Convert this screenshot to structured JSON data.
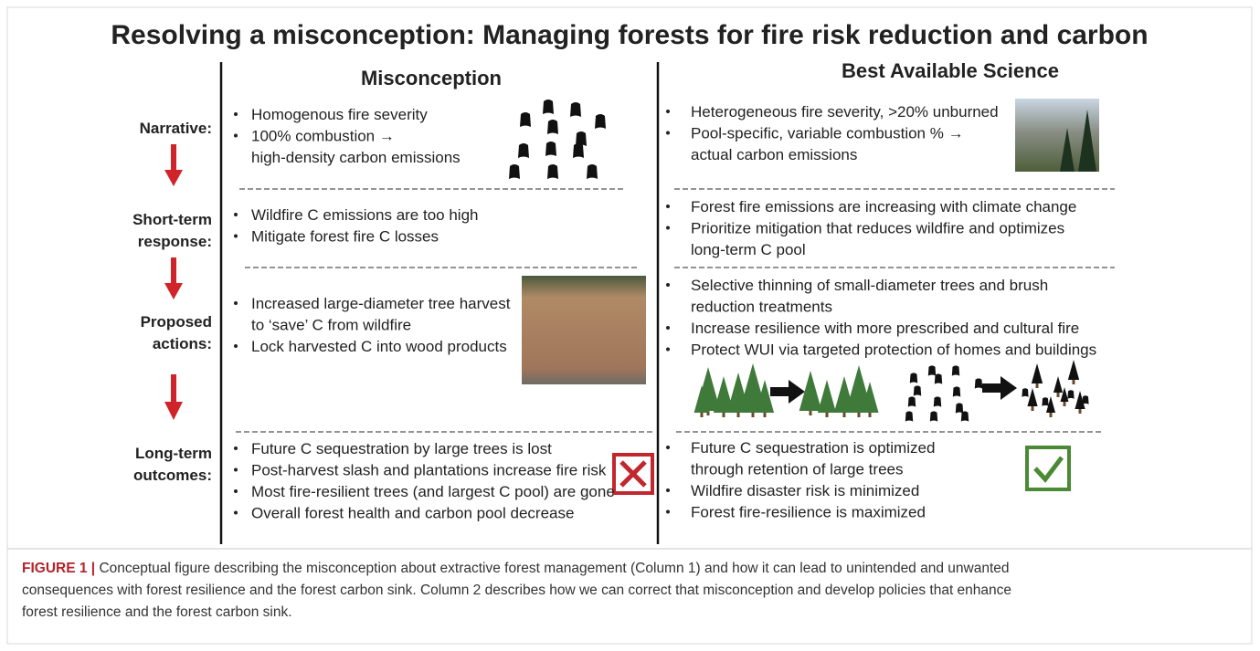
{
  "figure": {
    "title": "Resolving a misconception: Managing forests for fire risk reduction and carbon",
    "columns": [
      "Misconception",
      "Best Available Science"
    ],
    "rows": [
      {
        "label": [
          "Narrative:"
        ],
        "misconception": [
          [
            "Homogenous fire severity"
          ],
          [
            "100% combustion →",
            "high-density carbon emissions"
          ]
        ],
        "science": [
          [
            "Heterogeneous fire severity, >20% unburned"
          ],
          [
            "Pool-specific, variable combustion % →",
            "actual carbon emissions"
          ]
        ]
      },
      {
        "label": [
          "Short-term",
          "response:"
        ],
        "misconception": [
          [
            "Wildfire C emissions are too high"
          ],
          [
            "Mitigate forest fire C losses"
          ]
        ],
        "science": [
          [
            "Forest fire emissions are increasing with climate change"
          ],
          [
            "Prioritize mitigation that reduces wildfire and optimizes",
            "long-term C pool"
          ]
        ]
      },
      {
        "label": [
          "Proposed",
          "actions:"
        ],
        "misconception": [
          [
            "Increased large-diameter tree harvest",
            "to ‘save’ C from wildfire"
          ],
          [
            "Lock harvested C into wood products"
          ]
        ],
        "science": [
          [
            "Selective thinning of small-diameter trees and brush",
            "reduction treatments"
          ],
          [
            "Increase resilience with more prescribed and cultural fire"
          ],
          [
            "Protect WUI via targeted protection of homes and buildings"
          ]
        ]
      },
      {
        "label": [
          "Long-term",
          "outcomes:"
        ],
        "misconception": [
          [
            "Future C sequestration by large trees is lost"
          ],
          [
            "Post-harvest slash and plantations increase fire risk"
          ],
          [
            "Most fire-resilient trees (and largest C pool) are gone"
          ],
          [
            "Overall forest health and carbon pool decrease"
          ]
        ],
        "science": [
          [
            "Future C sequestration is optimized",
            "through retention of large trees"
          ],
          [
            "Wildfire disaster risk is minimized"
          ],
          [
            "Forest fire-resilience is maximized"
          ]
        ]
      }
    ],
    "caption": {
      "label": "FIGURE 1 |",
      "lines": [
        " Conceptual figure describing the misconception about extractive forest management (Column 1) and how it can lead to unintended and unwanted",
        "consequences with forest resilience and the forest carbon sink. Column 2 describes how we can correct that misconception and develop policies that enhance",
        "forest resilience and the forest carbon sink."
      ]
    }
  }
}
